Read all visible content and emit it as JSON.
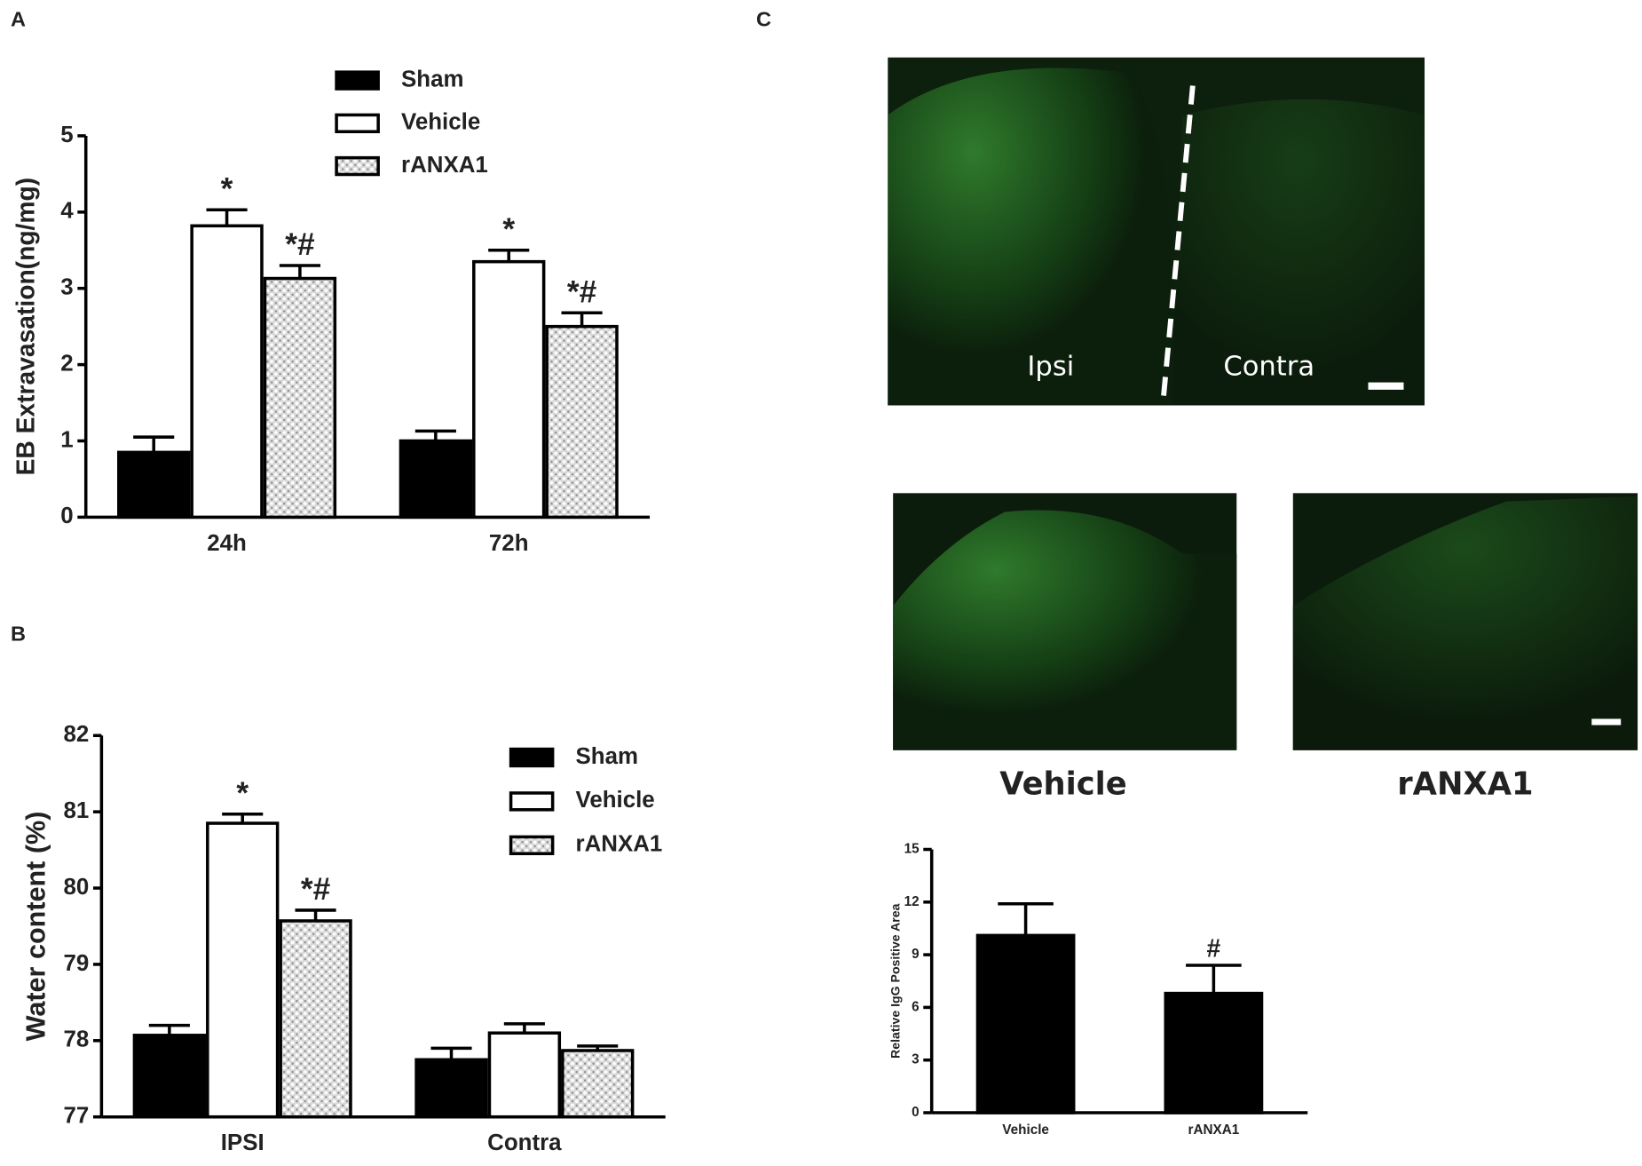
{
  "panels": {
    "a": "A",
    "b": "B",
    "c": "C"
  },
  "images": {
    "top_left": "Ipsi",
    "top_right": "Contra",
    "bottom_left": "Vehicle",
    "bottom_right": "rANXA1"
  },
  "chart_data": [
    {
      "type": "bar",
      "ylabel": "EB Extravasation(ng/mg)",
      "categories": [
        "24h",
        "72h"
      ],
      "ylim": [
        0,
        5
      ],
      "yticks": [
        0,
        1,
        2,
        3,
        4,
        5
      ],
      "legend": true,
      "series": [
        {
          "name": "Sham",
          "color": "#000000",
          "values": [
            0.85,
            1
          ],
          "errors": [
            0.2,
            0.13
          ]
        },
        {
          "name": "Vehicle",
          "color": "#ffffff",
          "values": [
            3.82,
            3.35
          ],
          "errors": [
            0.21,
            0.15
          ],
          "markers": [
            "*",
            "*"
          ]
        },
        {
          "name": "rANXA1",
          "color": "#d9d9d9",
          "pattern": "dots",
          "values": [
            3.13,
            2.5
          ],
          "errors": [
            0.17,
            0.18
          ],
          "markers": [
            "*#",
            "*#"
          ]
        }
      ]
    },
    {
      "type": "bar",
      "ylabel": "Water content (%)",
      "categories": [
        "IPSI",
        "Contra"
      ],
      "ylim": [
        77,
        82
      ],
      "yticks": [
        77,
        78,
        79,
        80,
        81,
        82
      ],
      "legend": true,
      "series": [
        {
          "name": "Sham",
          "color": "#000000",
          "values": [
            78.07,
            77.75
          ],
          "errors": [
            0.13,
            0.15
          ]
        },
        {
          "name": "Vehicle",
          "color": "#ffffff",
          "values": [
            80.85,
            78.1
          ],
          "errors": [
            0.12,
            0.12
          ],
          "markers": [
            "*",
            null
          ]
        },
        {
          "name": "rANXA1",
          "color": "#d9d9d9",
          "pattern": "dots",
          "values": [
            79.57,
            77.87
          ],
          "errors": [
            0.14,
            0.06
          ],
          "markers": [
            "*#",
            null
          ]
        }
      ]
    },
    {
      "type": "bar",
      "ylabel": "Relative IgG Positive Area",
      "categories": [
        "Vehicle",
        "rANXA1"
      ],
      "ylim": [
        0,
        15
      ],
      "yticks": [
        0,
        3,
        6,
        9,
        12,
        15
      ],
      "legend": false,
      "series": [
        {
          "color": "#000000",
          "values": [
            10.1,
            6.8
          ],
          "errors": [
            1.8,
            1.6
          ],
          "markers": [
            null,
            "#"
          ]
        }
      ]
    }
  ]
}
